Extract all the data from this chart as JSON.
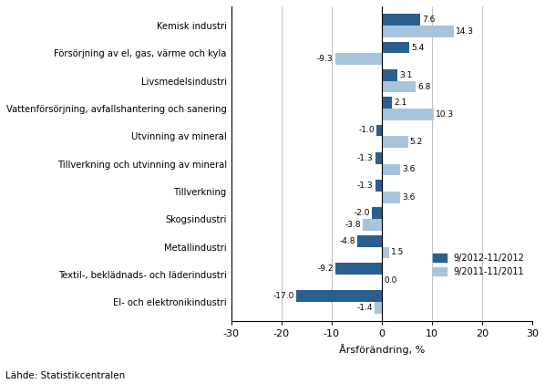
{
  "categories": [
    "El- och elektronikindustri",
    "Textil-, beklädnads- och läderindustri",
    "Metallindustri",
    "Skogsindustri",
    "Tillverkning",
    "Tillverkning och utvinning av mineral",
    "Utvinning av mineral",
    "Vattenförsörjning, avfallshantering och sanering",
    "Livsmedelsindustri",
    "Försörjning av el, gas, värme och kyla",
    "Kemisk industri"
  ],
  "series1": [
    -17.0,
    -9.2,
    -4.8,
    -2.0,
    -1.3,
    -1.3,
    -1.0,
    2.1,
    3.1,
    5.4,
    7.6
  ],
  "series2": [
    -1.4,
    0.0,
    1.5,
    -3.8,
    3.6,
    3.6,
    5.2,
    10.3,
    6.8,
    -9.3,
    14.3
  ],
  "color1": "#2B5F8E",
  "color2": "#A8C4DC",
  "legend1": "9/2012-11/2012",
  "legend2": "9/2011-11/2011",
  "xlabel": "Årsförändring, %",
  "xlim": [
    -30,
    30
  ],
  "xticks": [
    -30,
    -20,
    -10,
    0,
    10,
    20,
    30
  ],
  "footnote": "Lähde: Statistikcentralen",
  "bar_height": 0.42
}
